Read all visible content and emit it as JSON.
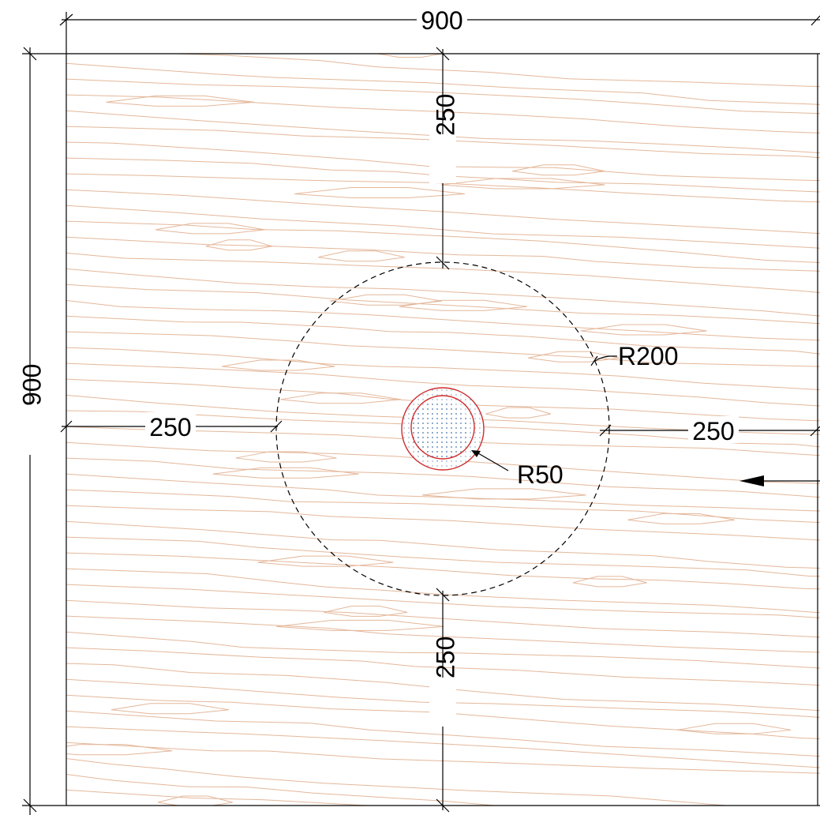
{
  "drawing": {
    "colors": {
      "background": "#ffffff",
      "line": "#000000",
      "grain": "#e4b79a",
      "pipe": "#d22b2b",
      "fill_dots": "#5a86b5"
    },
    "dimensions": {
      "top_width": "900",
      "left_height": "900",
      "top_gap": "250",
      "bottom_gap": "250",
      "left_gap": "250",
      "right_gap": "250"
    },
    "labels": {
      "outer_radius": "R200",
      "inner_radius": "R50"
    },
    "icons": {
      "direction_arrow": "left-arrow-icon"
    }
  }
}
